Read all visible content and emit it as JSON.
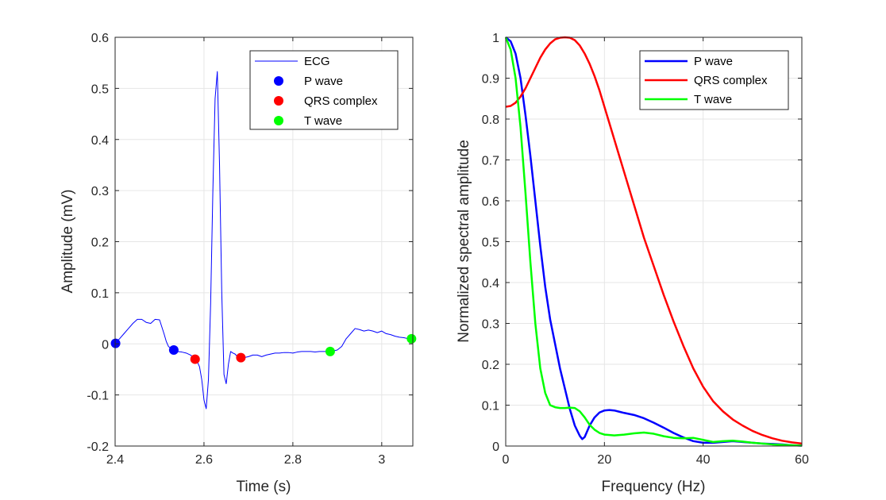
{
  "chart_data": [
    {
      "type": "line",
      "xlabel": "Time (s)",
      "ylabel": "Amplitude (mV)",
      "xlim": [
        2.4,
        3.07
      ],
      "ylim": [
        -0.2,
        0.6
      ],
      "xticks": [
        "2.4",
        "2.6",
        "2.8",
        "3"
      ],
      "xtick_values": [
        2.4,
        2.6,
        2.8,
        3.0
      ],
      "yticks": [
        "-0.2",
        "-0.1",
        "0",
        "0.1",
        "0.2",
        "0.3",
        "0.4",
        "0.5",
        "0.6"
      ],
      "ytick_values": [
        -0.2,
        -0.1,
        0,
        0.1,
        0.2,
        0.3,
        0.4,
        0.5,
        0.6
      ],
      "grid": true,
      "legend_position": "top-right",
      "series": [
        {
          "name": "ECG",
          "kind": "line",
          "color": "#0000ff",
          "x": [
            2.4,
            2.41,
            2.42,
            2.43,
            2.44,
            2.45,
            2.46,
            2.47,
            2.48,
            2.49,
            2.5,
            2.51,
            2.515,
            2.52,
            2.53,
            2.54,
            2.55,
            2.56,
            2.57,
            2.58,
            2.585,
            2.59,
            2.595,
            2.6,
            2.605,
            2.61,
            2.615,
            2.62,
            2.625,
            2.63,
            2.635,
            2.64,
            2.645,
            2.65,
            2.655,
            2.66,
            2.665,
            2.67,
            2.675,
            2.68,
            2.69,
            2.7,
            2.71,
            2.72,
            2.73,
            2.74,
            2.75,
            2.76,
            2.77,
            2.78,
            2.79,
            2.8,
            2.81,
            2.82,
            2.83,
            2.84,
            2.85,
            2.86,
            2.87,
            2.88,
            2.89,
            2.9,
            2.91,
            2.92,
            2.93,
            2.94,
            2.95,
            2.96,
            2.97,
            2.98,
            2.99,
            3.0,
            3.01,
            3.02,
            3.03,
            3.04,
            3.05,
            3.06,
            3.07
          ],
          "y": [
            0.001,
            0.01,
            0.02,
            0.03,
            0.04,
            0.048,
            0.048,
            0.042,
            0.04,
            0.048,
            0.047,
            0.02,
            0.005,
            -0.005,
            -0.012,
            -0.015,
            -0.016,
            -0.018,
            -0.022,
            -0.03,
            -0.035,
            -0.045,
            -0.07,
            -0.11,
            -0.127,
            -0.07,
            0.08,
            0.3,
            0.48,
            0.533,
            0.35,
            0.1,
            -0.06,
            -0.078,
            -0.04,
            -0.015,
            -0.018,
            -0.02,
            -0.025,
            -0.027,
            -0.027,
            -0.025,
            -0.022,
            -0.022,
            -0.025,
            -0.022,
            -0.02,
            -0.018,
            -0.018,
            -0.017,
            -0.017,
            -0.018,
            -0.016,
            -0.015,
            -0.015,
            -0.015,
            -0.016,
            -0.015,
            -0.015,
            -0.015,
            -0.014,
            -0.012,
            -0.005,
            0.01,
            0.02,
            0.03,
            0.028,
            0.025,
            0.027,
            0.025,
            0.022,
            0.025,
            0.02,
            0.018,
            0.015,
            0.013,
            0.012,
            0.01,
            0.009
          ]
        },
        {
          "name": "P wave",
          "kind": "markers",
          "color": "#0000ff",
          "x": [
            2.401,
            2.532
          ],
          "y": [
            0.001,
            -0.012
          ]
        },
        {
          "name": "QRS complex",
          "kind": "markers",
          "color": "#ff0000",
          "x": [
            2.58,
            2.683
          ],
          "y": [
            -0.03,
            -0.027
          ]
        },
        {
          "name": "T wave",
          "kind": "markers",
          "color": "#00ff00",
          "x": [
            2.884,
            3.067
          ],
          "y": [
            -0.015,
            0.01
          ]
        }
      ]
    },
    {
      "type": "line",
      "xlabel": "Frequency (Hz)",
      "ylabel": "Normalized spectral amplitude",
      "xlim": [
        0,
        60
      ],
      "ylim": [
        0,
        1
      ],
      "xticks": [
        "0",
        "20",
        "40",
        "60"
      ],
      "xtick_values": [
        0,
        20,
        40,
        60
      ],
      "yticks": [
        "0",
        "0.1",
        "0.2",
        "0.3",
        "0.4",
        "0.5",
        "0.6",
        "0.7",
        "0.8",
        "0.9",
        "1"
      ],
      "ytick_values": [
        0,
        0.1,
        0.2,
        0.3,
        0.4,
        0.5,
        0.6,
        0.7,
        0.8,
        0.9,
        1
      ],
      "grid": true,
      "legend_position": "top-right",
      "series": [
        {
          "name": "P wave",
          "kind": "line",
          "color": "#0000ff",
          "x": [
            0,
            1,
            2,
            3,
            4,
            5,
            6,
            7,
            8,
            9,
            10,
            11,
            12,
            13,
            14,
            15,
            15.5,
            16,
            17,
            18,
            19,
            20,
            21,
            22,
            23,
            24,
            26,
            28,
            30,
            32,
            34,
            36,
            38,
            40,
            42,
            44,
            46,
            48,
            50,
            52,
            54,
            56,
            58,
            60
          ],
          "y": [
            1.0,
            0.99,
            0.96,
            0.9,
            0.81,
            0.71,
            0.6,
            0.49,
            0.39,
            0.31,
            0.25,
            0.19,
            0.14,
            0.09,
            0.05,
            0.025,
            0.017,
            0.022,
            0.05,
            0.07,
            0.082,
            0.087,
            0.088,
            0.087,
            0.084,
            0.081,
            0.076,
            0.068,
            0.057,
            0.045,
            0.032,
            0.021,
            0.012,
            0.008,
            0.008,
            0.01,
            0.012,
            0.01,
            0.008,
            0.006,
            0.005,
            0.004,
            0.002,
            0.001
          ]
        },
        {
          "name": "QRS complex",
          "kind": "line",
          "color": "#ff0000",
          "x": [
            0,
            1,
            2,
            3,
            4,
            5,
            6,
            7,
            8,
            9,
            10,
            11,
            12,
            13,
            14,
            15,
            16,
            17,
            18,
            19,
            20,
            21,
            22,
            23,
            24,
            25,
            26,
            27,
            28,
            29,
            30,
            32,
            34,
            36,
            38,
            40,
            42,
            44,
            46,
            48,
            50,
            52,
            54,
            56,
            58,
            60
          ],
          "y": [
            0.83,
            0.832,
            0.84,
            0.855,
            0.875,
            0.9,
            0.925,
            0.95,
            0.97,
            0.985,
            0.995,
            0.999,
            1.0,
            0.999,
            0.993,
            0.98,
            0.96,
            0.935,
            0.905,
            0.87,
            0.83,
            0.79,
            0.75,
            0.71,
            0.67,
            0.63,
            0.59,
            0.55,
            0.51,
            0.475,
            0.44,
            0.37,
            0.305,
            0.245,
            0.19,
            0.145,
            0.11,
            0.085,
            0.065,
            0.05,
            0.037,
            0.027,
            0.019,
            0.013,
            0.009,
            0.006
          ]
        },
        {
          "name": "T wave",
          "kind": "line",
          "color": "#00ff00",
          "x": [
            0,
            1,
            2,
            3,
            4,
            5,
            6,
            7,
            8,
            9,
            10,
            11,
            12,
            13,
            14,
            15,
            16,
            17,
            18,
            19,
            20,
            22,
            24,
            26,
            28,
            30,
            32,
            34,
            36,
            38,
            40,
            42,
            44,
            46,
            48,
            50,
            52,
            54,
            56,
            58,
            60
          ],
          "y": [
            1.0,
            0.97,
            0.9,
            0.78,
            0.62,
            0.45,
            0.3,
            0.19,
            0.13,
            0.1,
            0.095,
            0.093,
            0.093,
            0.094,
            0.093,
            0.085,
            0.07,
            0.052,
            0.04,
            0.032,
            0.028,
            0.026,
            0.028,
            0.031,
            0.033,
            0.03,
            0.024,
            0.02,
            0.019,
            0.02,
            0.015,
            0.01,
            0.012,
            0.013,
            0.011,
            0.008,
            0.006,
            0.004,
            0.003,
            0.002,
            0.001
          ]
        }
      ]
    }
  ]
}
